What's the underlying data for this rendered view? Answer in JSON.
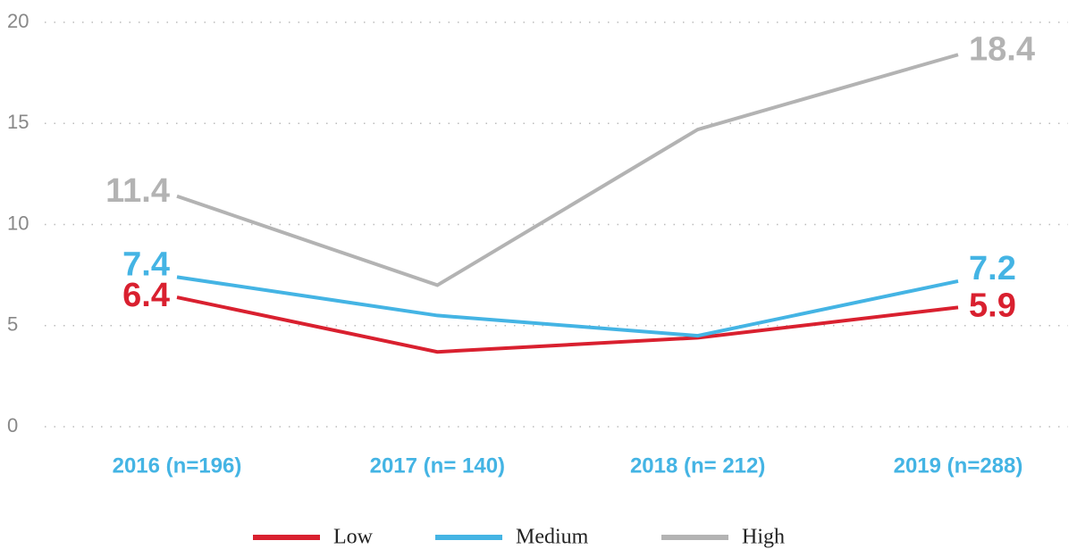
{
  "chart_data": {
    "type": "line",
    "categories": [
      "2016 (n=196)",
      "2017 (n= 140)",
      "2018 (n= 212)",
      "2019 (n=288)"
    ],
    "series": [
      {
        "name": "Low",
        "color": "#d9202f",
        "values": [
          6.4,
          3.7,
          4.4,
          5.9
        ]
      },
      {
        "name": "Medium",
        "color": "#44b4e4",
        "values": [
          7.4,
          5.5,
          4.5,
          7.2
        ]
      },
      {
        "name": "High",
        "color": "#b3b3b3",
        "values": [
          11.4,
          7.0,
          14.7,
          18.4
        ]
      }
    ],
    "ylim": [
      0,
      20
    ],
    "yticks": [
      0,
      5,
      10,
      15,
      20
    ],
    "grid": true,
    "legend": "bottom"
  }
}
